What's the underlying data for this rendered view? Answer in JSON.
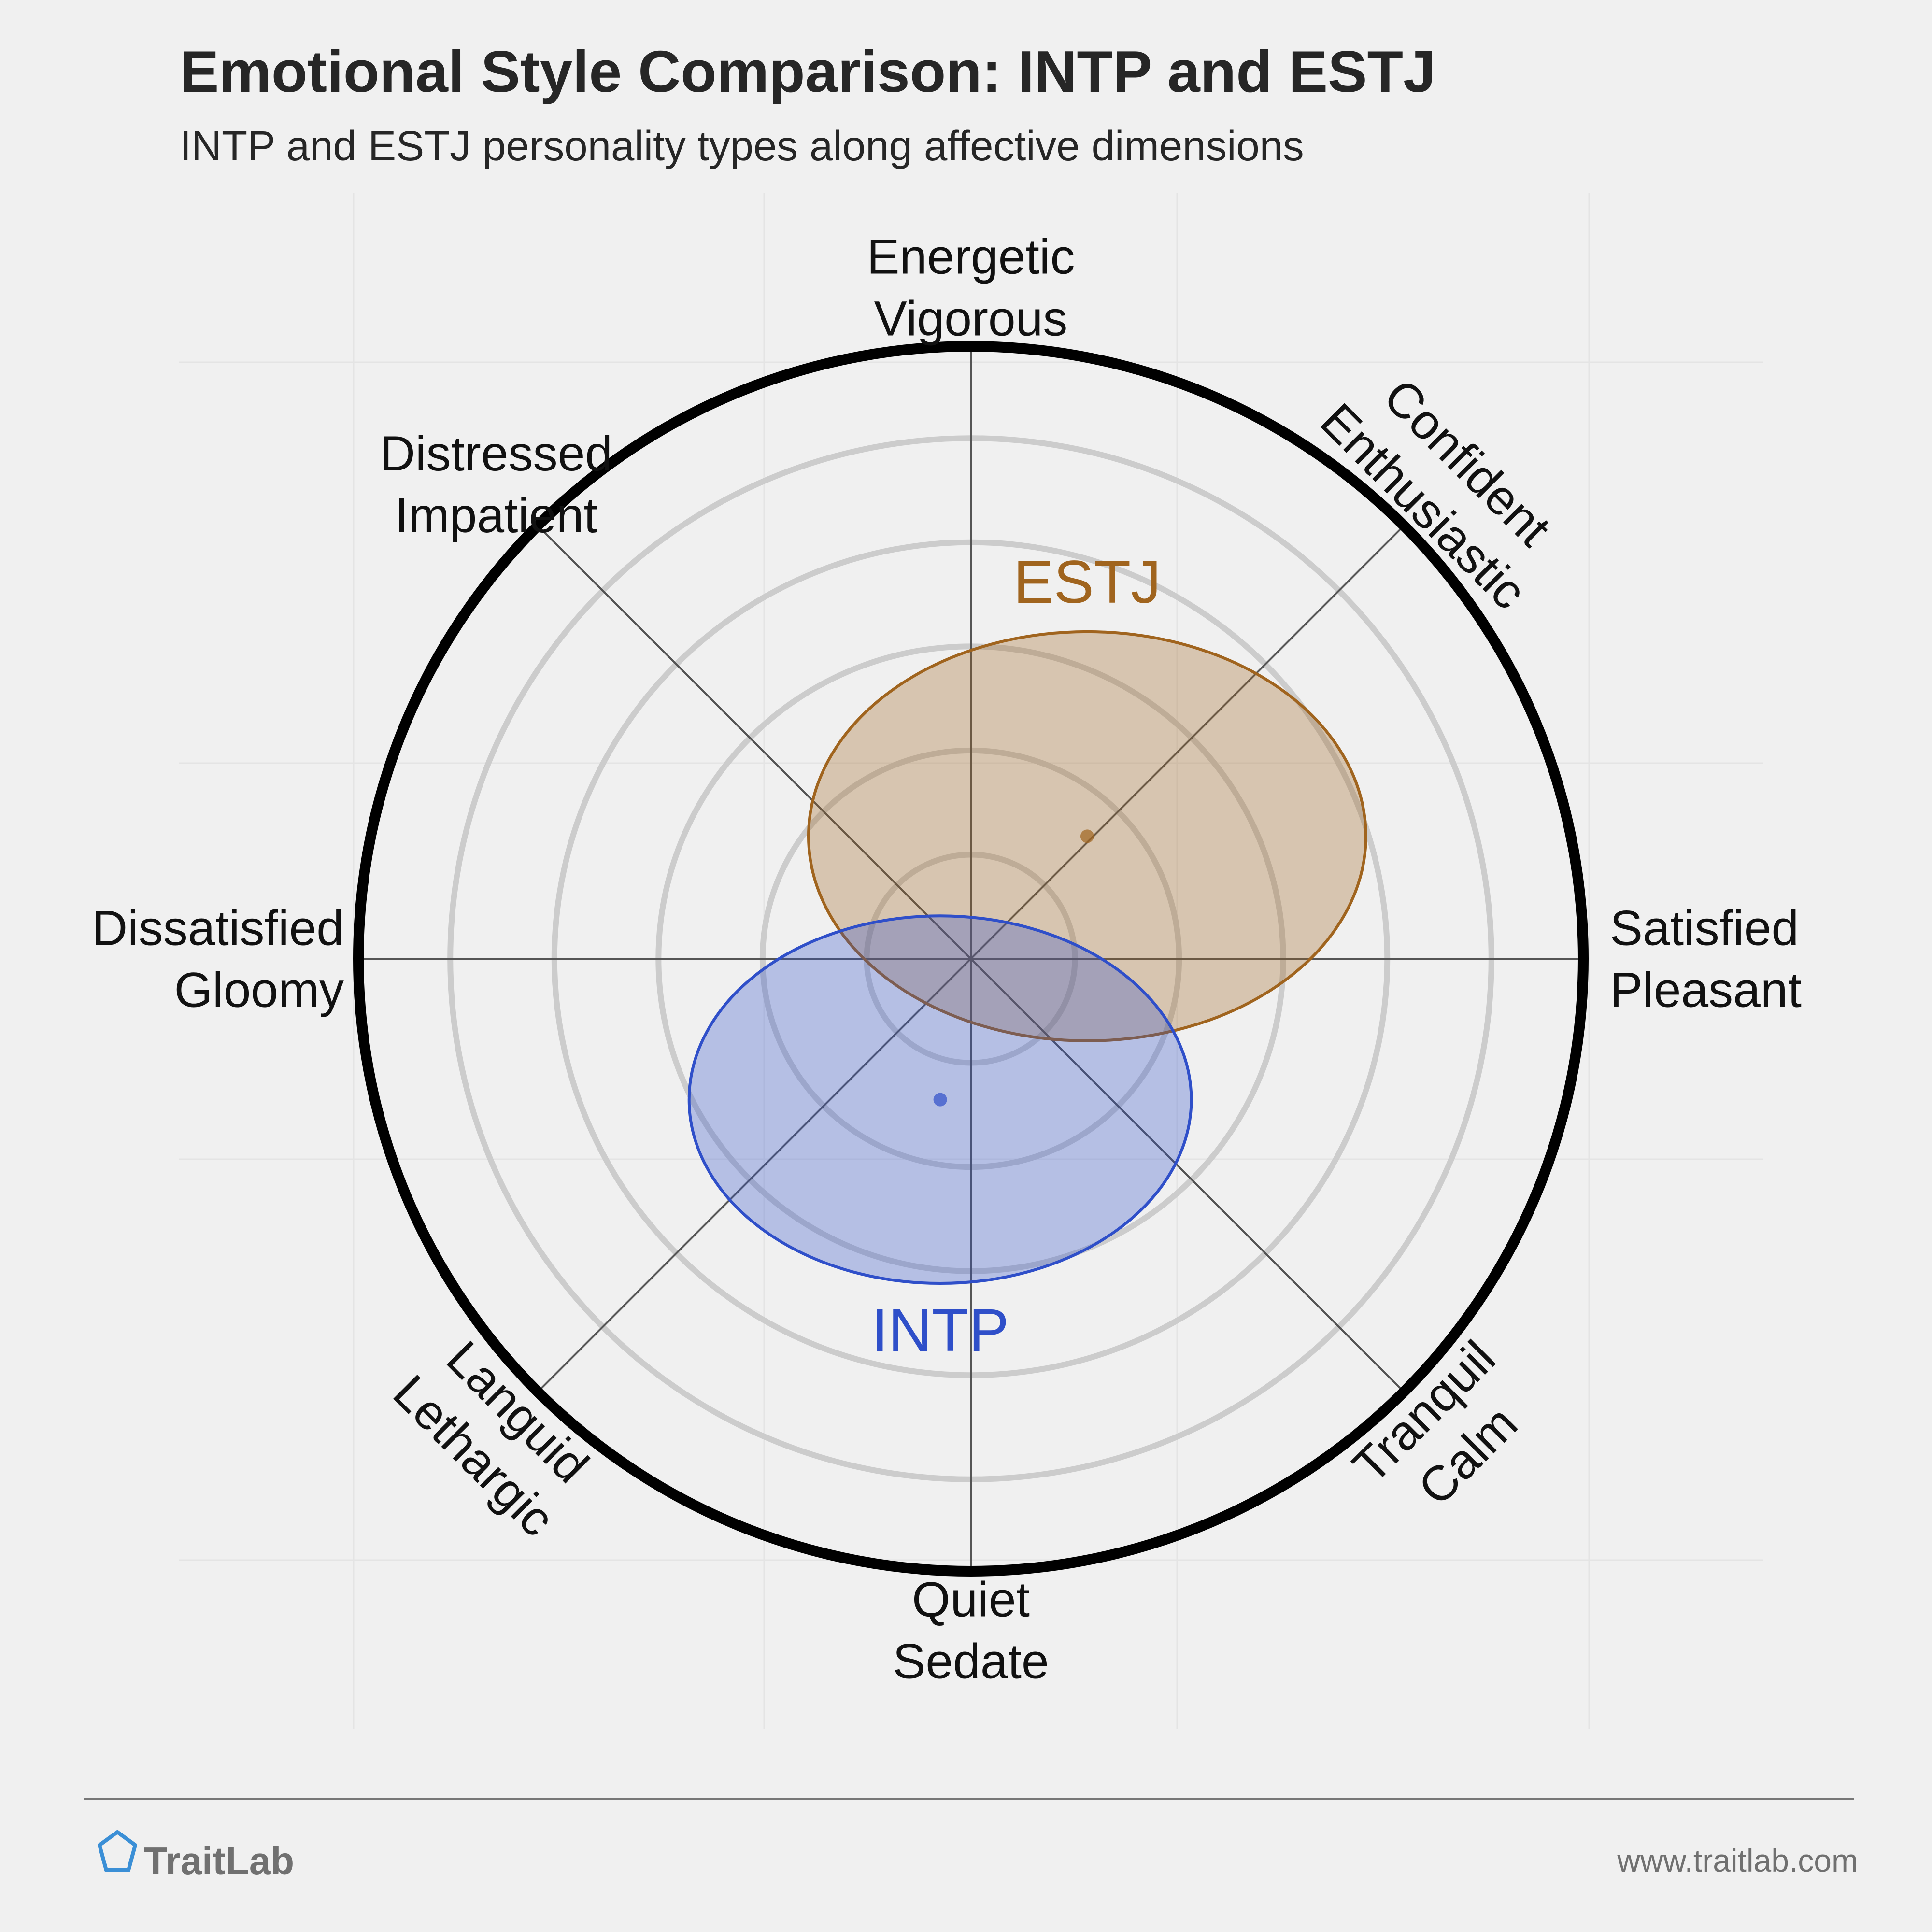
{
  "chart_data": {
    "type": "circumplex",
    "title": "Emotional Style Comparison: INTP and ESTJ",
    "subtitle": "INTP and ESTJ personality types along affective dimensions",
    "axis_labels": [
      [
        "Energetic",
        "Vigorous"
      ],
      [
        "Confident",
        "Enthusiastic"
      ],
      [
        "Satisfied",
        "Pleasant"
      ],
      [
        "Tranquil",
        "Calm"
      ],
      [
        "Quiet",
        "Sedate"
      ],
      [
        "Languid",
        "Lethargic"
      ],
      [
        "Dissatisfied",
        "Gloomy"
      ],
      [
        "Distressed",
        "Impatient"
      ]
    ],
    "rlim": [
      0,
      1
    ],
    "rticks": [
      0.17,
      0.34,
      0.51,
      0.68,
      0.85
    ],
    "series": [
      {
        "name": "ESTJ",
        "color": "#a0641e",
        "x": 0.19,
        "y": 0.2,
        "rx": 0.455,
        "ry": 0.334
      },
      {
        "name": "INTP",
        "color": "#2f4fc9",
        "x": -0.05,
        "y": -0.23,
        "rx": 0.41,
        "ry": 0.3
      }
    ]
  },
  "footer": {
    "brand": "TraitLab",
    "url": "www.traitlab.com"
  }
}
